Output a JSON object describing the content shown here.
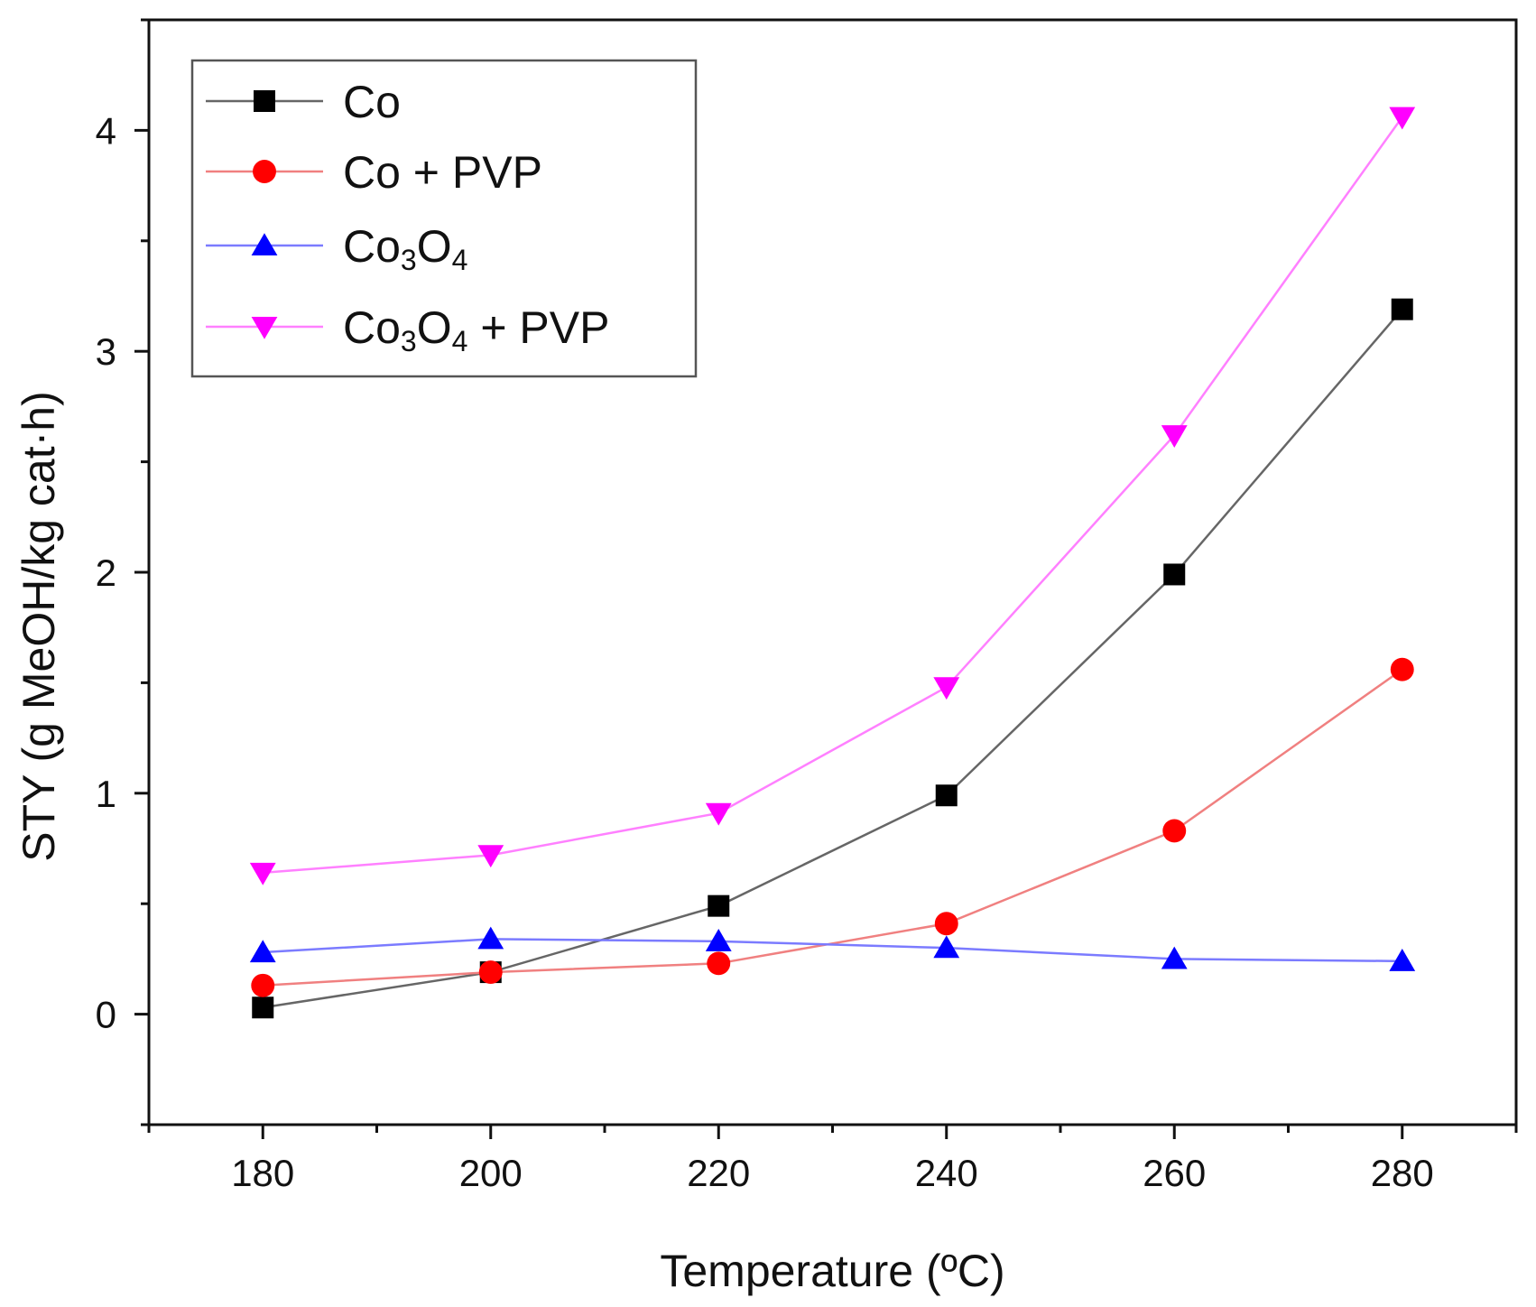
{
  "chart_data": {
    "type": "line",
    "title": "",
    "xlabel": "Temperature (ºC)",
    "ylabel": "STY (g MeOH/kg cat·h)",
    "x": [
      180,
      200,
      220,
      240,
      260,
      280
    ],
    "xlim": [
      170,
      290
    ],
    "ylim": [
      -0.5,
      4.5
    ],
    "x_ticks": [
      180,
      200,
      220,
      240,
      260,
      280
    ],
    "y_ticks": [
      0,
      1,
      2,
      3,
      4
    ],
    "grid": false,
    "legend_position": "top-left",
    "series": [
      {
        "name": "Co",
        "legend_label": {
          "base": "Co",
          "sub1": "",
          "mid": "",
          "sub2": "",
          "tail": ""
        },
        "marker": "square",
        "color": "#000000",
        "line_color": "#666666",
        "values": [
          0.03,
          0.19,
          0.49,
          0.99,
          1.99,
          3.19
        ]
      },
      {
        "name": "Co + PVP",
        "legend_label": {
          "base": "Co + PVP",
          "sub1": "",
          "mid": "",
          "sub2": "",
          "tail": ""
        },
        "marker": "circle",
        "color": "#ff0000",
        "line_color": "#f08080",
        "values": [
          0.13,
          0.19,
          0.23,
          0.41,
          0.83,
          1.56
        ]
      },
      {
        "name": "Co3O4",
        "legend_label": {
          "base": "Co",
          "sub1": "3",
          "mid": "O",
          "sub2": "4",
          "tail": ""
        },
        "marker": "triangle-up",
        "color": "#0000ff",
        "line_color": "#7b7bff",
        "values": [
          0.28,
          0.34,
          0.33,
          0.3,
          0.25,
          0.24
        ]
      },
      {
        "name": "Co3O4 + PVP",
        "legend_label": {
          "base": "Co",
          "sub1": "3",
          "mid": "O",
          "sub2": "4",
          "tail": " + PVP"
        },
        "marker": "triangle-down",
        "color": "#ff00ff",
        "line_color": "#ff80ff",
        "values": [
          0.64,
          0.72,
          0.91,
          1.48,
          2.62,
          4.06
        ]
      }
    ]
  }
}
